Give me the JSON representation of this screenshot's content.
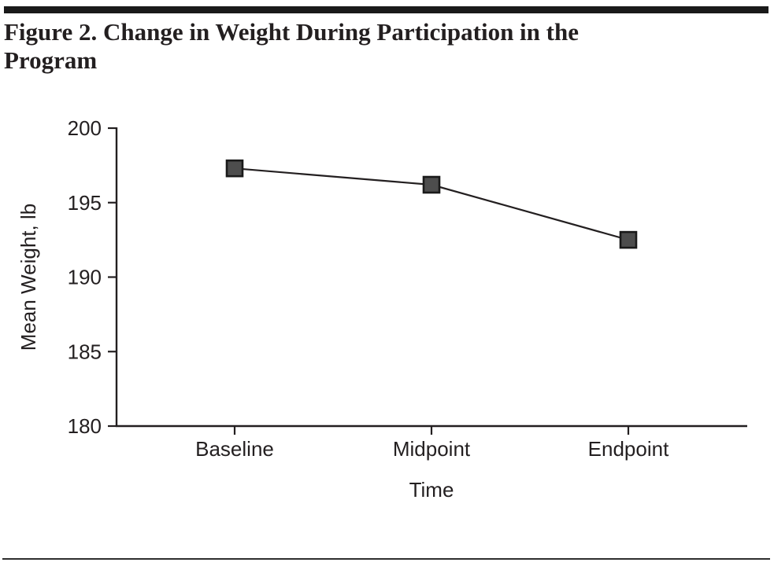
{
  "figure": {
    "title_line1": "Figure 2. Change in Weight During Participation in the",
    "title_line2": "Program"
  },
  "chart_data": {
    "type": "line",
    "title": "Figure 2. Change in Weight During Participation in the Program",
    "categories": [
      "Baseline",
      "Midpoint",
      "Endpoint"
    ],
    "series": [
      {
        "name": "Mean Weight",
        "values": [
          197.3,
          196.2,
          192.5
        ]
      }
    ],
    "xlabel": "Time",
    "ylabel": "Mean Weight, lb",
    "ylim": [
      180,
      200
    ],
    "yticks": [
      180,
      185,
      190,
      195,
      200
    ],
    "grid": false,
    "legend": "none",
    "marker": "square",
    "colors": {
      "line": "#231f20",
      "marker_fill": "#4d4d4d",
      "marker_stroke": "#1a1a1a",
      "text": "#231f20",
      "rule": "#1a1a1a"
    }
  }
}
